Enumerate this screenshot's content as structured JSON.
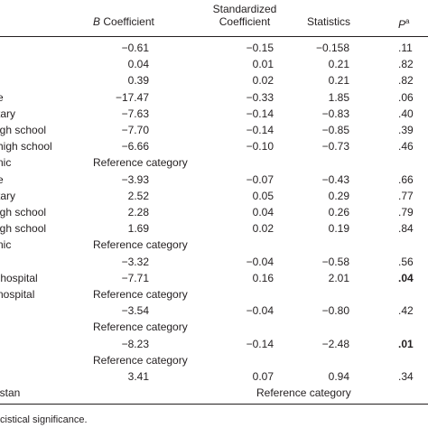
{
  "header": {
    "b_italic": "B",
    "b_coefficient": "Coefficient",
    "std_line1": "Standardized",
    "std_line2": "Coefficient",
    "statistics": "Statistics",
    "p": "P",
    "p_sup": "a"
  },
  "table": {
    "rows": [
      {
        "cells": [
          "−0.61",
          "−0.15",
          "−0.158",
          ".11"
        ]
      },
      {
        "cells": [
          "0.04",
          "0.01",
          "0.21",
          ".82"
        ]
      },
      {
        "cells": [
          "0.39",
          "0.02",
          "0.21",
          ".82"
        ]
      },
      {
        "label": "e",
        "cells": [
          "−17.47",
          "−0.33",
          "1.85",
          ".06"
        ]
      },
      {
        "label": "tary",
        "cells": [
          "−7.63",
          "−0.14",
          "−0.83",
          ".40"
        ]
      },
      {
        "label": "igh school",
        "cells": [
          "−7.70",
          "−0.14",
          "−0.85",
          ".39"
        ]
      },
      {
        "label": "high school",
        "cells": [
          "−6.66",
          "−0.10",
          "−0.73",
          ".46"
        ]
      },
      {
        "label": "nic",
        "reference": "Reference category"
      },
      {
        "label": "e",
        "cells": [
          "−3.93",
          "−0.07",
          "−0.43",
          ".66"
        ]
      },
      {
        "label": "tary",
        "cells": [
          "2.52",
          "0.05",
          "0.29",
          ".77"
        ]
      },
      {
        "label": "igh school",
        "cells": [
          "2.28",
          "0.04",
          "0.26",
          ".79"
        ]
      },
      {
        "label": "igh school",
        "cells": [
          "1.69",
          "0.02",
          "0.19",
          ".84"
        ]
      },
      {
        "label": "nic",
        "reference": "Reference category"
      },
      {
        "cells": [
          "−3.32",
          "−0.04",
          "−0.58",
          ".56"
        ]
      },
      {
        "label": " hospital",
        "cells": [
          "−7.71",
          "0.16",
          "2.01",
          ".04"
        ],
        "bold_p": true
      },
      {
        "label": "nospital",
        "reference": "Reference category"
      },
      {
        "cells": [
          "−3.54",
          "−0.04",
          "−0.80",
          ".42"
        ]
      },
      {
        "reference": "Reference category"
      },
      {
        "cells": [
          "−8.23",
          "−0.14",
          "−2.48",
          ".01"
        ],
        "bold_p": true
      },
      {
        "reference": "Reference category"
      },
      {
        "cells": [
          "3.41",
          "0.07",
          "0.94",
          ".34"
        ]
      },
      {
        "label": "istan",
        "reference": "Reference category",
        "wide": true
      }
    ]
  },
  "footnote": "cistical significance."
}
